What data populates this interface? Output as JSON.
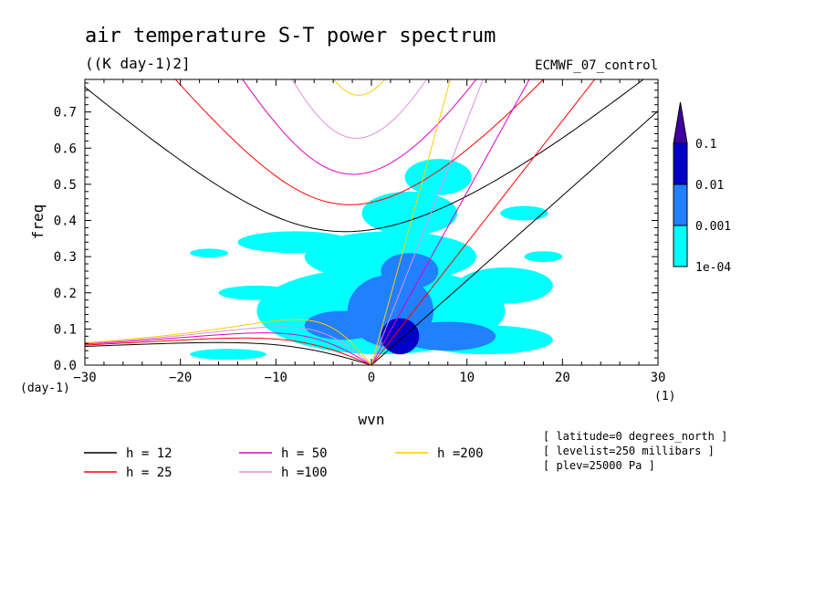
{
  "chart_data": {
    "type": "heatmap",
    "title": "air temperature S-T power spectrum",
    "subtitle": "((K day-1)2]",
    "dataset": "ECMWF_07_control",
    "xlabel": "wvn",
    "ylabel": "freq",
    "x_unit": "(1)",
    "y_unit": "(day-1)",
    "xlim": [
      -30,
      30
    ],
    "ylim": [
      0,
      0.79
    ],
    "xticks": [
      -30,
      -20,
      -10,
      0,
      10,
      20,
      30
    ],
    "yticks": [
      0.0,
      0.1,
      0.2,
      0.3,
      0.4,
      0.5,
      0.6,
      0.7
    ],
    "colorbar": {
      "levels": [
        "1e-04",
        "0.001",
        "0.01",
        "0.1"
      ],
      "colors": [
        "#00ffff",
        "#2080ff",
        "#0000c8",
        "#4000a0"
      ]
    },
    "dispersion_curves": [
      {
        "name": "h = 12",
        "h": 12,
        "color": "#000000"
      },
      {
        "name": "h = 25",
        "h": 25,
        "color": "#ff0000"
      },
      {
        "name": "h = 50",
        "h": 50,
        "color": "#e000c0"
      },
      {
        "name": "h =100",
        "h": 100,
        "color": "#e090e0"
      },
      {
        "name": "h =200",
        "h": 200,
        "color": "#ffcc00"
      }
    ],
    "annotations": [
      "[ latitude=0 degrees_north ]",
      "[ levelist=250 millibars ]",
      "[ plev=25000 Pa ]"
    ],
    "spectrum_blobs": [
      {
        "x": 3,
        "y": 0.08,
        "rx": 2.0,
        "ry": 0.05,
        "level": 2
      },
      {
        "x": 2,
        "y": 0.15,
        "rx": 4.5,
        "ry": 0.1,
        "level": 1
      },
      {
        "x": 4,
        "y": 0.26,
        "rx": 3.0,
        "ry": 0.05,
        "level": 1
      },
      {
        "x": -3,
        "y": 0.11,
        "rx": 4.0,
        "ry": 0.04,
        "level": 1
      },
      {
        "x": 8,
        "y": 0.08,
        "rx": 5.0,
        "ry": 0.04,
        "level": 1
      },
      {
        "x": 1,
        "y": 0.15,
        "rx": 13.0,
        "ry": 0.12,
        "level": 0
      },
      {
        "x": 2,
        "y": 0.3,
        "rx": 9.0,
        "ry": 0.07,
        "level": 0
      },
      {
        "x": 4,
        "y": 0.42,
        "rx": 5.0,
        "ry": 0.06,
        "level": 0
      },
      {
        "x": 7,
        "y": 0.52,
        "rx": 3.5,
        "ry": 0.05,
        "level": 0
      },
      {
        "x": -8,
        "y": 0.34,
        "rx": 6.0,
        "ry": 0.03,
        "level": 0
      },
      {
        "x": -12,
        "y": 0.2,
        "rx": 4.0,
        "ry": 0.02,
        "level": 0
      },
      {
        "x": 14,
        "y": 0.22,
        "rx": 5.0,
        "ry": 0.05,
        "level": 0
      },
      {
        "x": 12,
        "y": 0.07,
        "rx": 7.0,
        "ry": 0.04,
        "level": 0
      },
      {
        "x": -15,
        "y": 0.03,
        "rx": 4.0,
        "ry": 0.015,
        "level": 0
      },
      {
        "x": -17,
        "y": 0.31,
        "rx": 2.0,
        "ry": 0.012,
        "level": 0
      },
      {
        "x": 16,
        "y": 0.42,
        "rx": 2.5,
        "ry": 0.02,
        "level": 0
      },
      {
        "x": 18,
        "y": 0.3,
        "rx": 2.0,
        "ry": 0.015,
        "level": 0
      }
    ]
  }
}
